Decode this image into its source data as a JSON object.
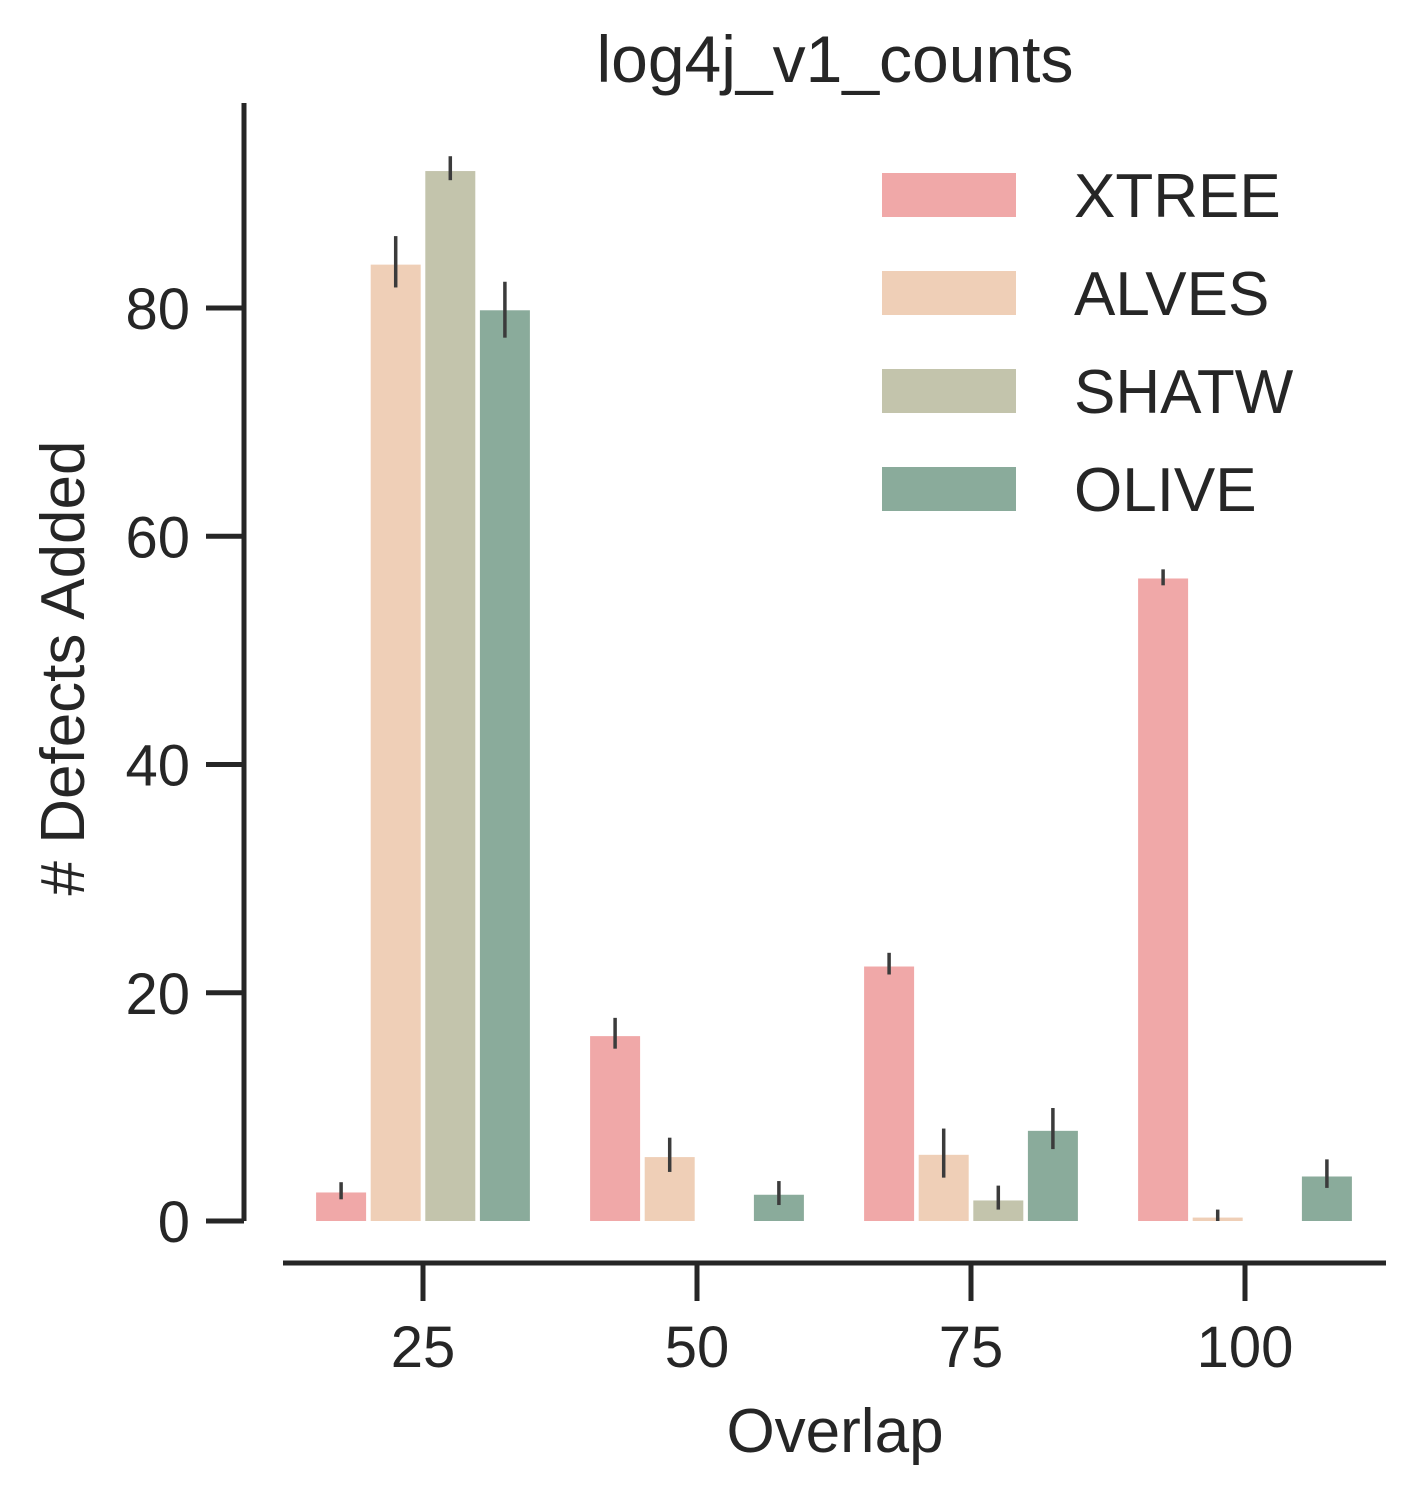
{
  "chart_data": {
    "type": "bar",
    "title": "log4j_v1_counts",
    "xlabel": "Overlap",
    "ylabel": "# Defects Added",
    "categories": [
      "25",
      "50",
      "75",
      "100"
    ],
    "yticks": [
      0,
      20,
      40,
      60,
      80
    ],
    "ylim": [
      0,
      97
    ],
    "grid": false,
    "legend_position": "top-right",
    "series": [
      {
        "name": "XTREE",
        "color": "#f0a8a8",
        "values": [
          2.5,
          16.2,
          22.3,
          56.3
        ],
        "err_low": [
          1.9,
          15.1,
          21.6,
          55.7
        ],
        "err_high": [
          3.4,
          17.8,
          23.5,
          57.1
        ]
      },
      {
        "name": "ALVES",
        "color": "#efcfb7",
        "values": [
          83.8,
          5.6,
          5.8,
          0.3
        ],
        "err_low": [
          81.8,
          4.3,
          3.8,
          0.0
        ],
        "err_high": [
          86.3,
          7.3,
          8.1,
          1.0
        ]
      },
      {
        "name": "SHATW",
        "color": "#c3c4ac",
        "values": [
          92.0,
          0,
          1.8,
          0
        ],
        "err_low": [
          91.2,
          0,
          1.0,
          0
        ],
        "err_high": [
          93.3,
          0,
          3.1,
          0
        ]
      },
      {
        "name": "OLIVE",
        "color": "#8aab9b",
        "values": [
          79.8,
          2.3,
          7.9,
          3.9
        ],
        "err_low": [
          77.4,
          1.4,
          6.3,
          2.9
        ],
        "err_high": [
          82.3,
          3.5,
          9.9,
          5.4
        ]
      }
    ]
  }
}
